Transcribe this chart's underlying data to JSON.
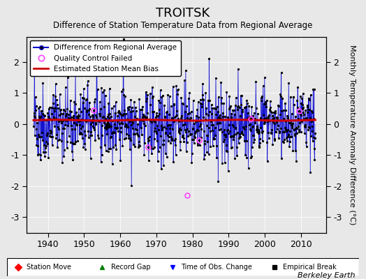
{
  "title": "TROITSK",
  "subtitle": "Difference of Station Temperature Data from Regional Average",
  "xlabel_years": [
    1940,
    1950,
    1960,
    1970,
    1980,
    1990,
    2000,
    2010
  ],
  "ylim": [
    -3.5,
    2.8
  ],
  "yticks": [
    -3,
    -2,
    -1,
    0,
    1,
    2
  ],
  "xmin": 1934,
  "xmax": 2017,
  "ylabel": "Monthly Temperature Anomaly Difference (°C)",
  "background_color": "#e8e8e8",
  "plot_background": "#e8e8e8",
  "line_color": "#0000cc",
  "fill_color": "#6666ff",
  "dot_color": "#000000",
  "bias_line_color": "#cc0000",
  "qc_color": "#ff44ff",
  "watermark": "Berkeley Earth",
  "bias_intercept": 0.12,
  "seed": 42,
  "year_start": 1936,
  "year_end": 2014,
  "qc_indices": [
    200,
    380,
    550,
    720,
    880
  ],
  "qc_special_t": 1978.5,
  "qc_special_v": -2.3,
  "break_t": 1956.5,
  "break_v": -0.05
}
